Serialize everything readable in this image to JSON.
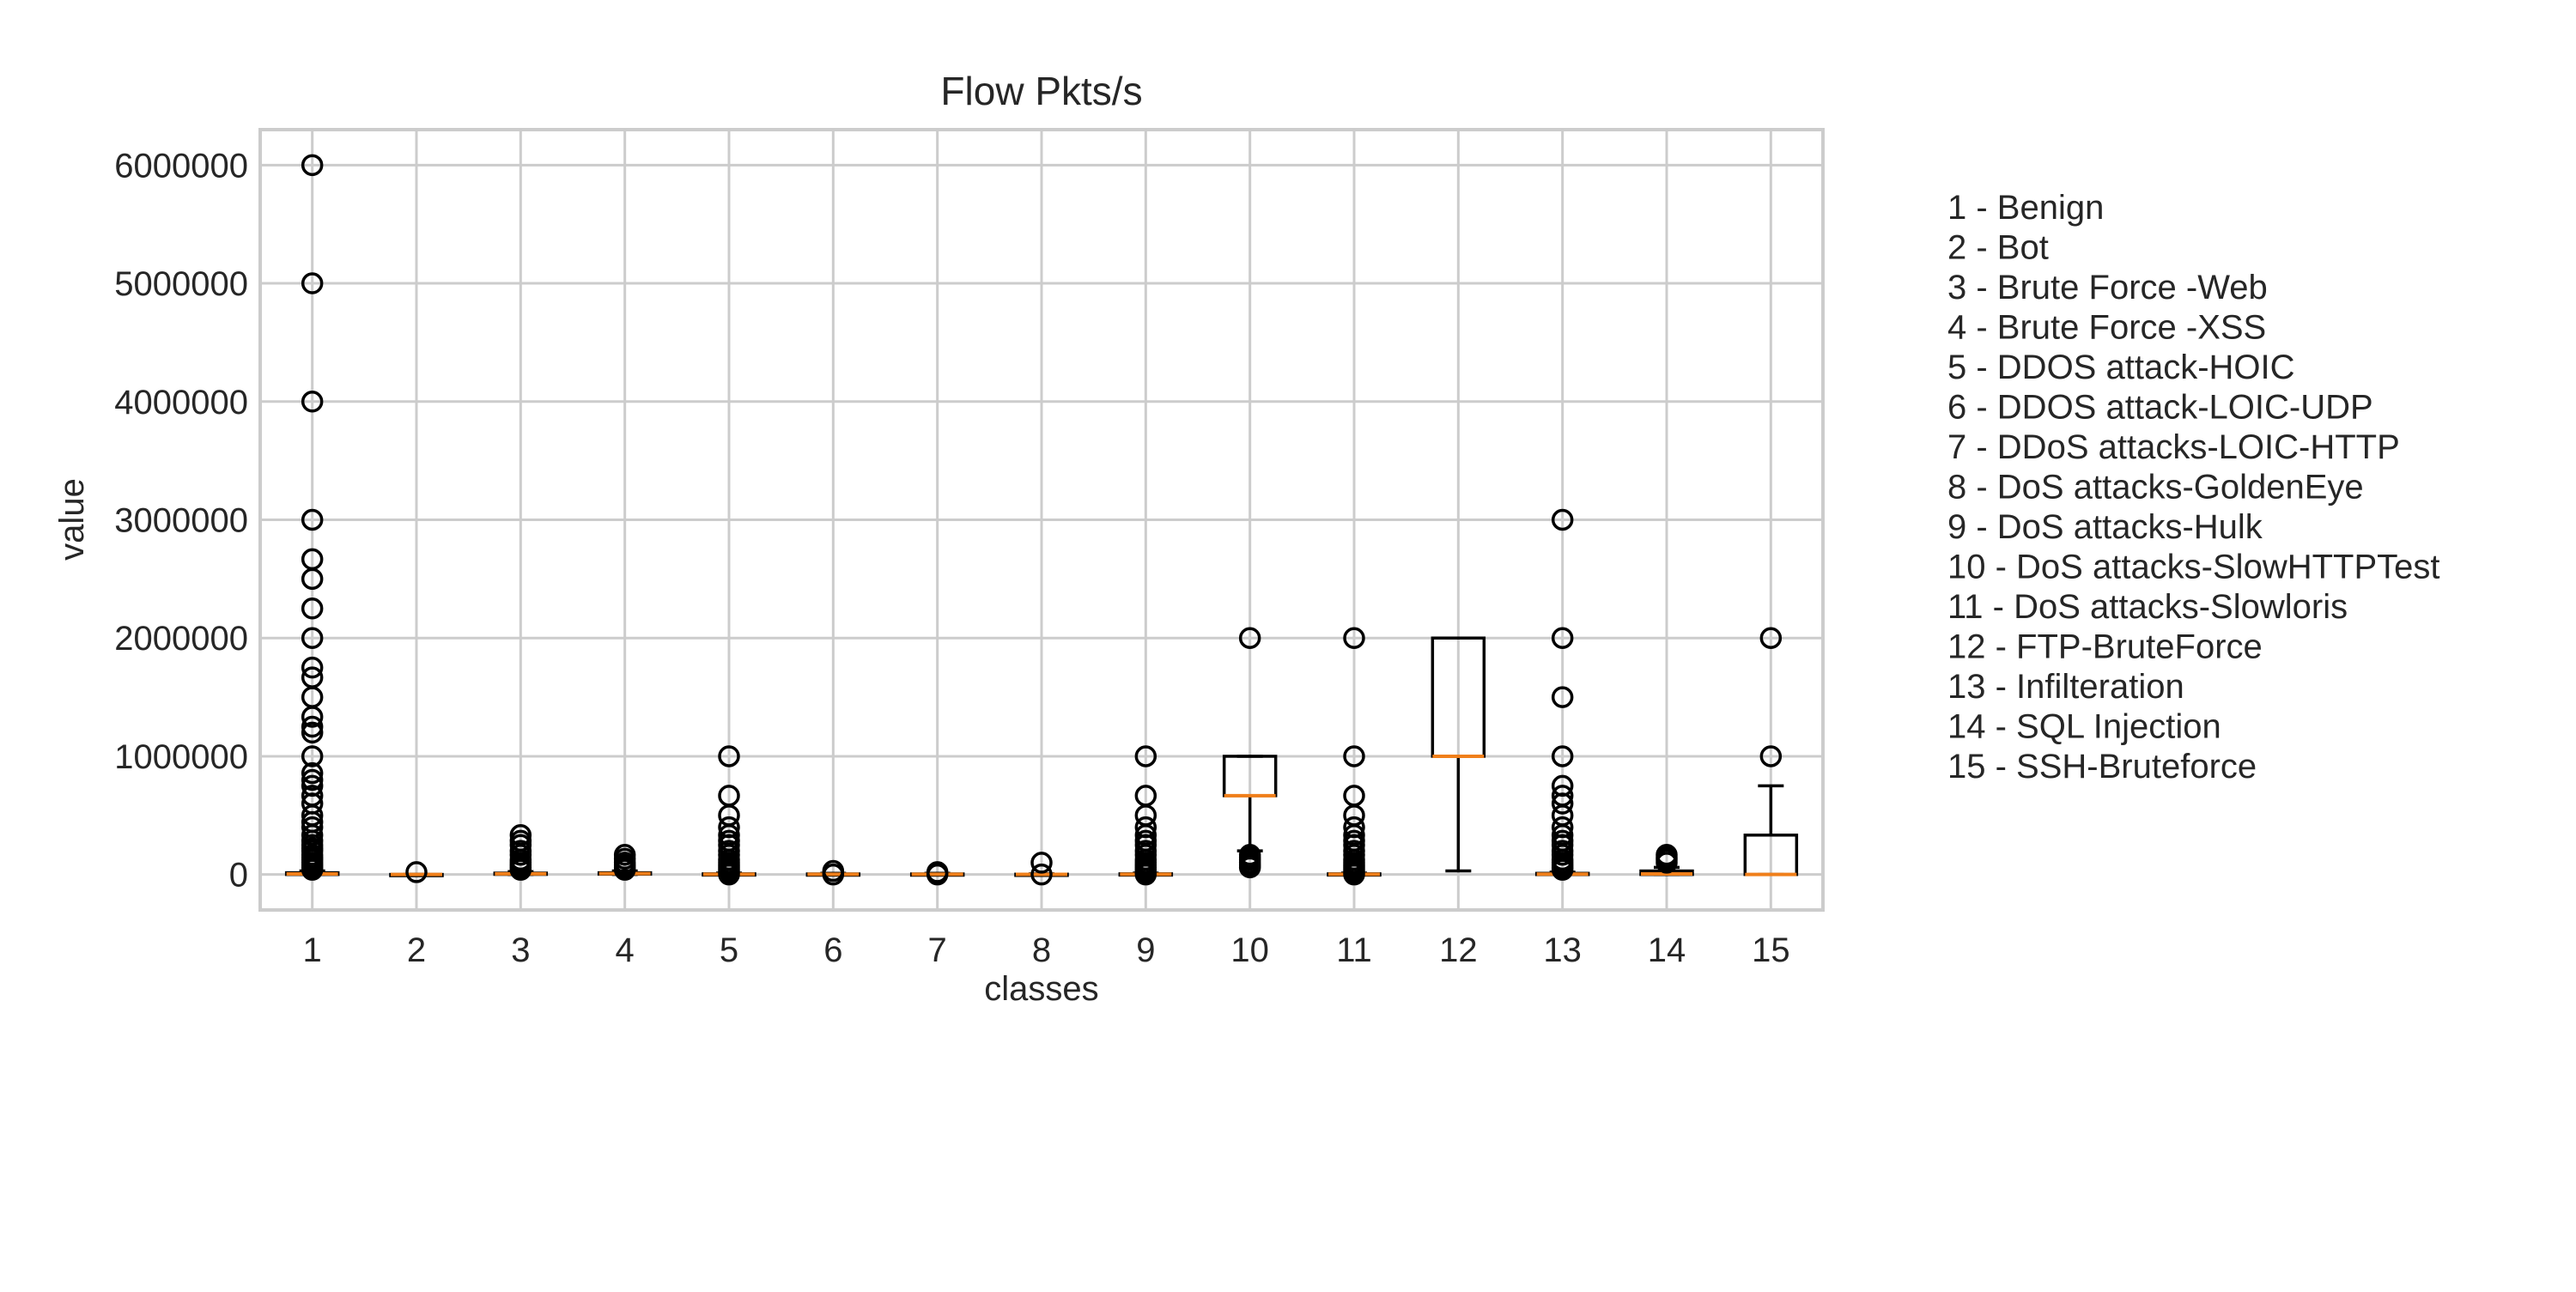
{
  "chart_data": {
    "type": "box",
    "title": "Flow Pkts/s",
    "xlabel": "classes",
    "ylabel": "value",
    "categories": [
      "1",
      "2",
      "3",
      "4",
      "5",
      "6",
      "7",
      "8",
      "9",
      "10",
      "11",
      "12",
      "13",
      "14",
      "15"
    ],
    "y_ticks": [
      0,
      1000000,
      2000000,
      3000000,
      4000000,
      5000000,
      6000000
    ],
    "y_tick_labels": [
      "0",
      "1000000",
      "2000000",
      "3000000",
      "4000000",
      "5000000",
      "6000000"
    ],
    "ylim": [
      -300000,
      6300000
    ],
    "grid": true,
    "legend": [
      "1 - Benign",
      "2 - Bot",
      "3 - Brute Force -Web",
      "4 - Brute Force -XSS",
      "5 - DDOS attack-HOIC",
      "6 - DDOS attack-LOIC-UDP",
      "7 - DDoS attacks-LOIC-HTTP",
      "8 - DoS attacks-GoldenEye",
      "9 - DoS attacks-Hulk",
      "10 - DoS attacks-SlowHTTPTest",
      "11 - DoS attacks-Slowloris",
      "12 - FTP-BruteForce",
      "13 - Infilteration",
      "14 - SQL Injection",
      "15 - SSH-Bruteforce"
    ],
    "legend_placement": "right",
    "colors": {
      "median": "#f07f1a",
      "box": "#000000",
      "grid": "#cccccc",
      "frame": "#cccccc"
    },
    "boxes": [
      {
        "class": "1",
        "q1": 0,
        "median": 5000,
        "q3": 15000,
        "whisker_low": 0,
        "whisker_high": 30000,
        "outliers": [
          6000000,
          5000000,
          4000000,
          3000000,
          2666667,
          2500000,
          2250000,
          2000000,
          1750000,
          1666667,
          1500000,
          1333333,
          1250000,
          1200000,
          1000000,
          857143,
          800000,
          750000,
          666667,
          600000,
          500000,
          444444,
          400000,
          333333,
          285714,
          250000,
          222222,
          200000,
          166667,
          142857,
          125000,
          100000,
          80000,
          60000,
          40000
        ]
      },
      {
        "class": "2",
        "q1": 0,
        "median": 300,
        "q3": 800,
        "whisker_low": 0,
        "whisker_high": 1500,
        "outliers": [
          20000
        ]
      },
      {
        "class": "3",
        "q1": 2000,
        "median": 6000,
        "q3": 12000,
        "whisker_low": 0,
        "whisker_high": 25000,
        "outliers": [
          333333,
          285714,
          250000,
          200000,
          166667,
          125000,
          100000,
          80000,
          60000,
          40000
        ]
      },
      {
        "class": "4",
        "q1": 3000,
        "median": 8000,
        "q3": 15000,
        "whisker_low": 0,
        "whisker_high": 30000,
        "outliers": [
          166667,
          133333,
          100000,
          80000,
          60000,
          40000
        ]
      },
      {
        "class": "5",
        "q1": 0,
        "median": 2000,
        "q3": 6000,
        "whisker_low": 0,
        "whisker_high": 12000,
        "outliers": [
          1000000,
          666667,
          500000,
          400000,
          333333,
          285714,
          250000,
          200000,
          166667,
          125000,
          100000,
          80000,
          60000,
          40000,
          20000,
          0
        ]
      },
      {
        "class": "6",
        "q1": 0,
        "median": 2000,
        "q3": 5000,
        "whisker_low": 0,
        "whisker_high": 10000,
        "outliers": [
          30000,
          0
        ]
      },
      {
        "class": "7",
        "q1": 0,
        "median": 2000,
        "q3": 5000,
        "whisker_low": 0,
        "whisker_high": 10000,
        "outliers": [
          20000,
          0
        ]
      },
      {
        "class": "8",
        "q1": 0,
        "median": 1000,
        "q3": 3000,
        "whisker_low": 0,
        "whisker_high": 6000,
        "outliers": [
          100000,
          0
        ]
      },
      {
        "class": "9",
        "q1": 0,
        "median": 2000,
        "q3": 6000,
        "whisker_low": 0,
        "whisker_high": 12000,
        "outliers": [
          1000000,
          666667,
          500000,
          400000,
          333333,
          285714,
          250000,
          200000,
          166667,
          125000,
          100000,
          80000,
          60000,
          40000,
          20000,
          0
        ]
      },
      {
        "class": "10",
        "q1": 666667,
        "median": 666667,
        "q3": 1000000,
        "whisker_low": 200000,
        "whisker_high": 1000000,
        "outliers": [
          2000000,
          166667,
          142857,
          125000,
          100000,
          80000,
          60000
        ]
      },
      {
        "class": "11",
        "q1": 0,
        "median": 2000,
        "q3": 6000,
        "whisker_low": 0,
        "whisker_high": 12000,
        "outliers": [
          2000000,
          1000000,
          666667,
          500000,
          400000,
          333333,
          285714,
          250000,
          200000,
          166667,
          125000,
          100000,
          80000,
          60000,
          40000,
          20000,
          0
        ]
      },
      {
        "class": "12",
        "q1": 1000000,
        "median": 1000000,
        "q3": 2000000,
        "whisker_low": 30000,
        "whisker_high": 2000000,
        "outliers": []
      },
      {
        "class": "13",
        "q1": 0,
        "median": 3000,
        "q3": 10000,
        "whisker_low": 0,
        "whisker_high": 20000,
        "outliers": [
          3000000,
          2000000,
          1500000,
          1000000,
          750000,
          666667,
          600000,
          500000,
          400000,
          333333,
          285714,
          250000,
          200000,
          166667,
          125000,
          100000,
          80000,
          60000,
          40000
        ]
      },
      {
        "class": "14",
        "q1": 0,
        "median": 5000,
        "q3": 30000,
        "whisker_low": 0,
        "whisker_high": 60000,
        "outliers": [
          166667,
          142857,
          125000,
          100000
        ]
      },
      {
        "class": "15",
        "q1": 0,
        "median": 0,
        "q3": 333333,
        "whisker_low": 0,
        "whisker_high": 750000,
        "outliers": [
          2000000,
          1000000
        ]
      }
    ]
  }
}
